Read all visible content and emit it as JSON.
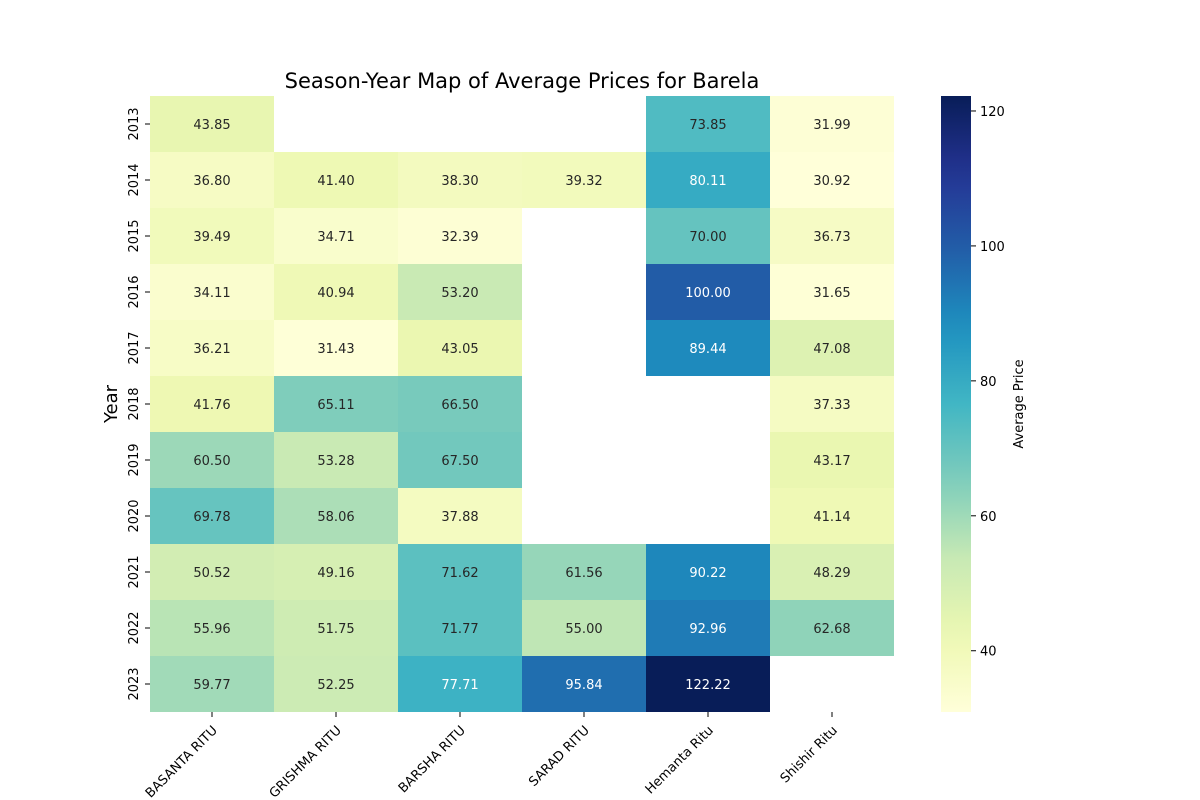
{
  "chart_data": {
    "type": "heatmap",
    "title": "Season-Year Map of Average Prices for Barela",
    "xlabel": "",
    "ylabel": "Year",
    "colorbar_label": "Average Price",
    "colormap": "YlGnBu",
    "vmin": 30.92,
    "vmax": 122.22,
    "colorbar_ticks": [
      "40",
      "60",
      "80",
      "100",
      "120"
    ],
    "x_categories": [
      "BASANTA RITU",
      "GRISHMA RITU",
      "BARSHA RITU",
      "SARAD RITU",
      "Hemanta Ritu",
      "Shishir Ritu"
    ],
    "y_categories": [
      "2013",
      "2014",
      "2015",
      "2016",
      "2017",
      "2018",
      "2019",
      "2020",
      "2021",
      "2022",
      "2023"
    ],
    "values": [
      [
        43.85,
        null,
        null,
        null,
        73.85,
        31.99
      ],
      [
        36.8,
        41.4,
        38.3,
        39.32,
        80.11,
        30.92
      ],
      [
        39.49,
        34.71,
        32.39,
        null,
        70.0,
        36.73
      ],
      [
        34.11,
        40.94,
        53.2,
        null,
        100.0,
        31.65
      ],
      [
        36.21,
        31.43,
        43.05,
        null,
        89.44,
        47.08
      ],
      [
        41.76,
        65.11,
        66.5,
        null,
        null,
        37.33
      ],
      [
        60.5,
        53.28,
        67.5,
        null,
        null,
        43.17
      ],
      [
        69.78,
        58.06,
        37.88,
        null,
        null,
        41.14
      ],
      [
        50.52,
        49.16,
        71.62,
        61.56,
        90.22,
        48.29
      ],
      [
        55.96,
        51.75,
        71.77,
        55.0,
        92.96,
        62.68
      ],
      [
        59.77,
        52.25,
        77.71,
        95.84,
        122.22,
        null
      ]
    ],
    "annotation_format": "%.2f",
    "grid": false
  }
}
